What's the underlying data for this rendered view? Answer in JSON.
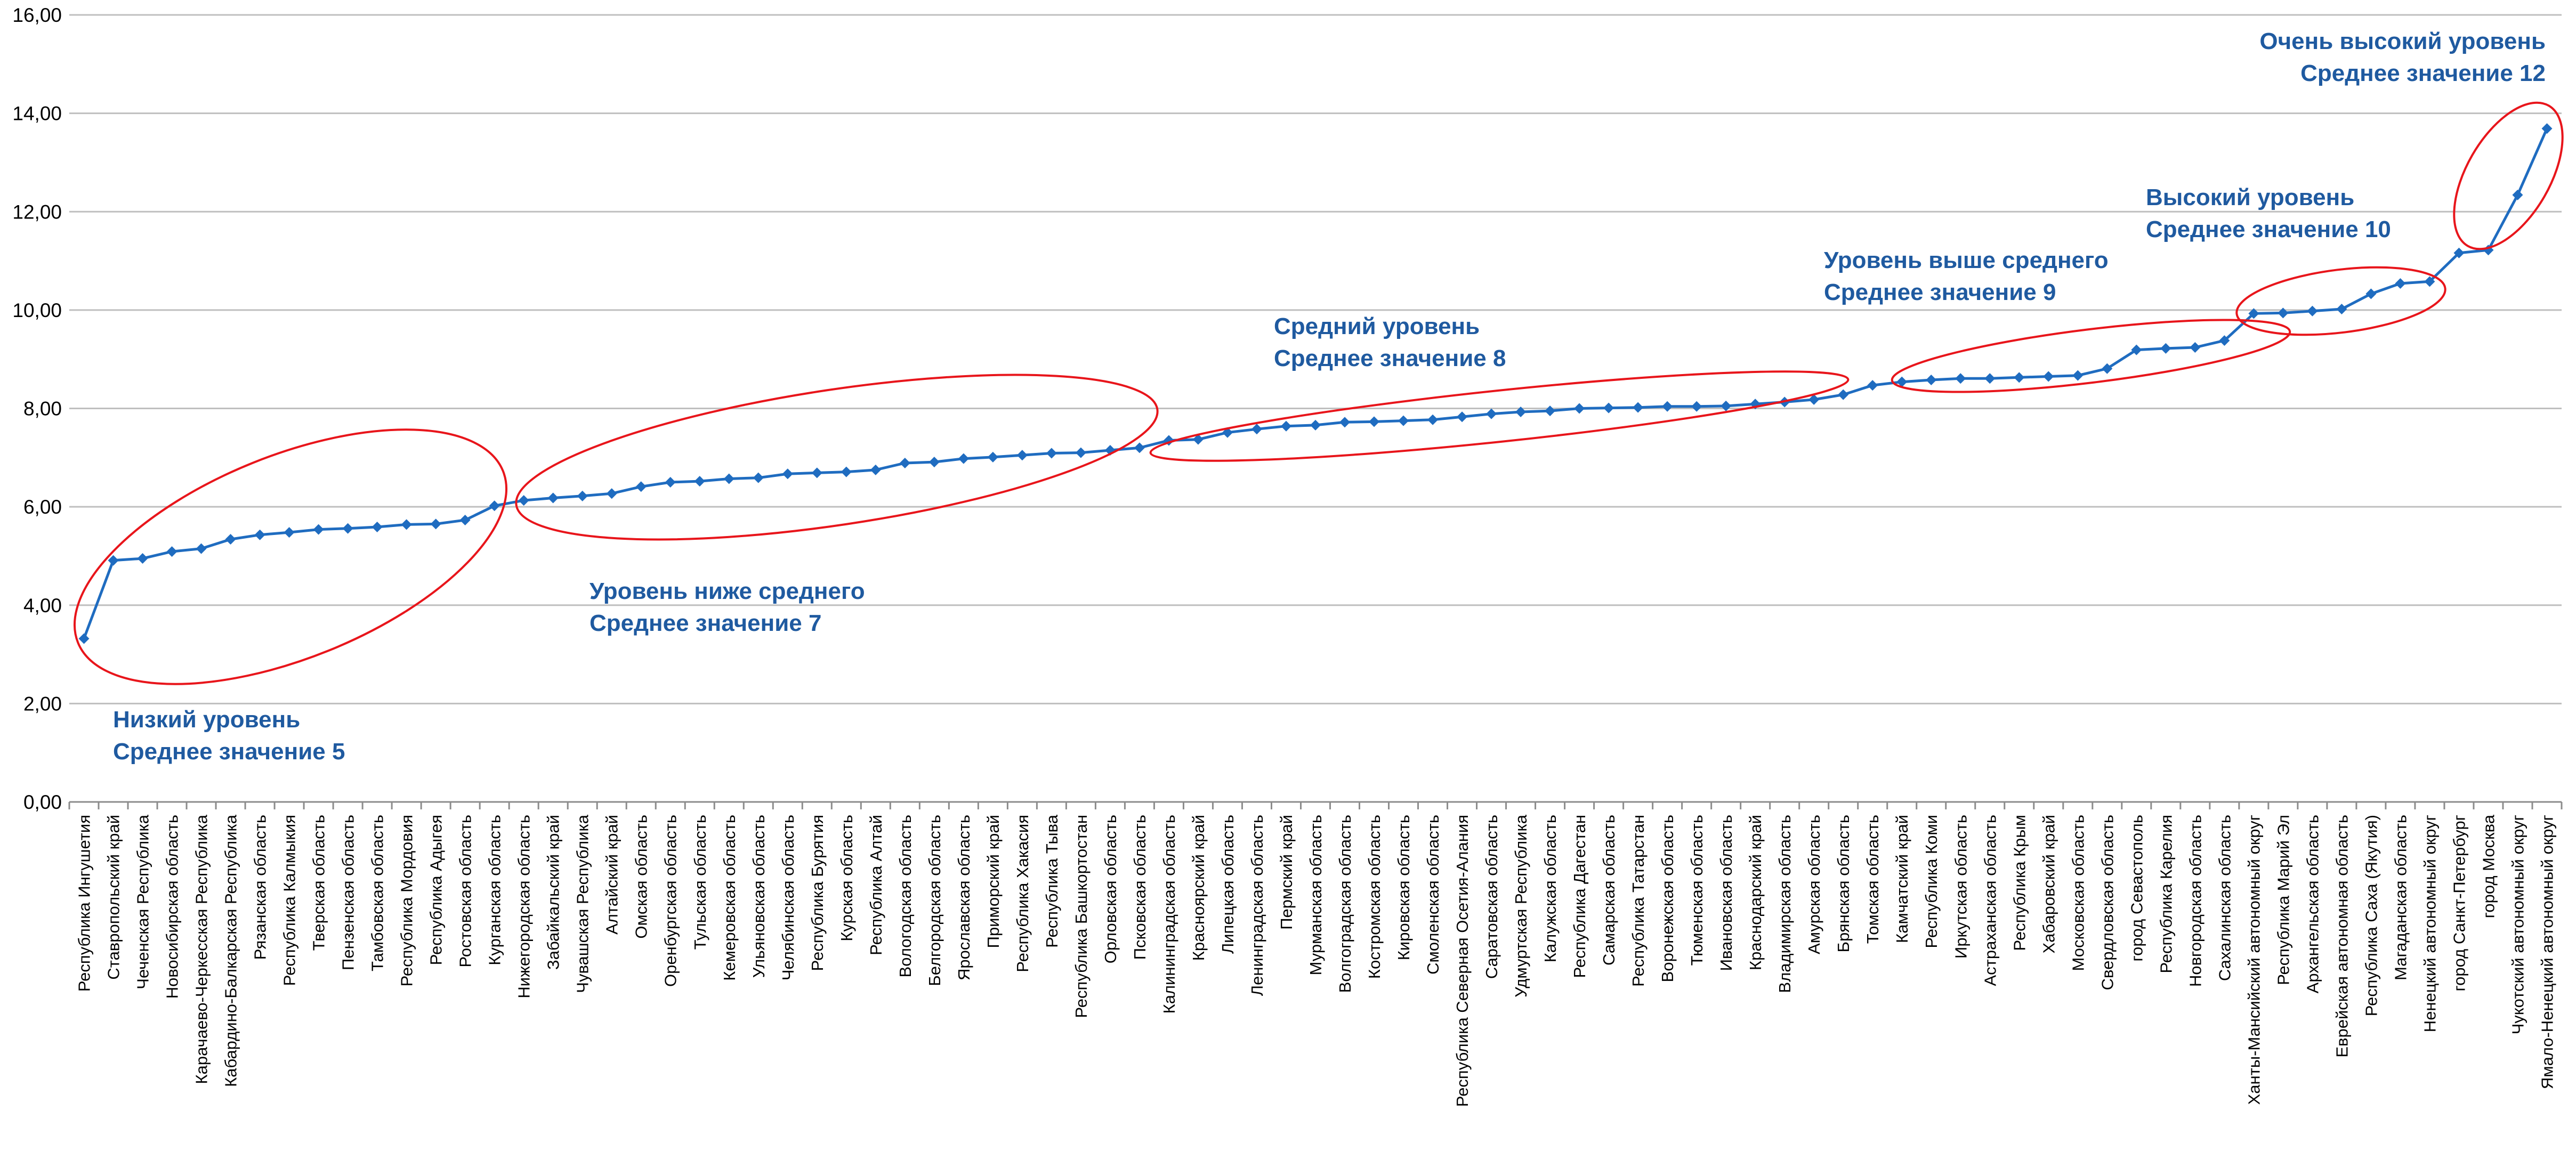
{
  "chart_data": {
    "type": "line",
    "title": "",
    "xlabel": "",
    "ylabel": "",
    "ylim": [
      0,
      16
    ],
    "y_ticks": [
      "0,00",
      "2,00",
      "4,00",
      "6,00",
      "8,00",
      "10,00",
      "12,00",
      "14,00",
      "16,00"
    ],
    "grid": true,
    "legend": "none",
    "colors": {
      "line": "#1f6cc0",
      "marker": "#1f6cc0",
      "ellipse": "#e8151b",
      "annotation": "#1f5aa0",
      "grid": "#bfbfbf"
    },
    "categories": [
      "Республика Ингушетия",
      "Ставропольский край",
      "Чеченская Республика",
      "Новосибирская область",
      "Карачаево-Черкесская Республика",
      "Кабардино-Балкарская Республика",
      "Рязанская область",
      "Республика Калмыкия",
      "Тверская область",
      "Пензенская область",
      "Тамбовская область",
      "Республика Мордовия",
      "Республика Адыгея",
      "Ростовская область",
      "Курганская область",
      "Нижегородская область",
      "Забайкальский край",
      "Чувашская Республика",
      "Алтайский край",
      "Омская область",
      "Оренбургская область",
      "Тульская область",
      "Кемеровская область",
      "Ульяновская область",
      "Челябинская область",
      "Республика Бурятия",
      "Курская область",
      "Республика Алтай",
      "Вологодская область",
      "Белгородская область",
      "Ярославская область",
      "Приморский край",
      "Республика Хакасия",
      "Республика Тыва",
      "Республика Башкортостан",
      "Орловская область",
      "Псковская область",
      "Калининградская область",
      "Красноярский край",
      "Липецкая область",
      "Ленинградская область",
      "Пермский край",
      "Мурманская область",
      "Волгоградская область",
      "Костромская область",
      "Кировская область",
      "Смоленская область",
      "Республика Северная Осетия-Алания",
      "Саратовская область",
      "Удмуртская Республика",
      "Калужская область",
      "Республика Дагестан",
      "Самарская область",
      "Республика Татарстан",
      "Воронежская область",
      "Тюменская область",
      "Ивановская область",
      "Краснодарский край",
      "Владимирская область",
      "Амурская область",
      "Брянская область",
      "Томская область",
      "Камчатский край",
      "Республика Коми",
      "Иркутская область",
      "Астраханская область",
      "Республика Крым",
      "Хабаровский край",
      "Московская область",
      "Свердловская область",
      "город Севастополь",
      "Республика Карелия",
      "Новгородская область",
      "Сахалинская область",
      "Ханты-Мансийский автономный округ",
      "Республика Марий Эл",
      "Архангельская область",
      "Еврейская автономная область",
      "Республика Саха (Якутия)",
      "Магаданская область",
      "Ненецкий автономный округ",
      "город Санкт-Петербург",
      "город Москва",
      "Чукотский автономный округ",
      "Ямало-Ненецкий автономный округ"
    ],
    "series": [
      {
        "values": [
          3.32,
          4.91,
          4.95,
          5.09,
          5.15,
          5.34,
          5.43,
          5.48,
          5.54,
          5.56,
          5.59,
          5.64,
          5.65,
          5.73,
          6.02,
          6.13,
          6.18,
          6.22,
          6.27,
          6.41,
          6.5,
          6.52,
          6.57,
          6.59,
          6.67,
          6.69,
          6.71,
          6.75,
          6.89,
          6.91,
          6.98,
          7.01,
          7.05,
          7.09,
          7.1,
          7.15,
          7.2,
          7.35,
          7.37,
          7.51,
          7.58,
          7.64,
          7.66,
          7.72,
          7.73,
          7.75,
          7.77,
          7.83,
          7.89,
          7.93,
          7.95,
          8.0,
          8.01,
          8.02,
          8.04,
          8.04,
          8.05,
          8.09,
          8.13,
          8.18,
          8.28,
          8.47,
          8.54,
          8.58,
          8.61,
          8.61,
          8.63,
          8.65,
          8.67,
          8.81,
          9.19,
          9.22,
          9.24,
          9.38,
          9.93,
          9.94,
          9.98,
          10.02,
          10.33,
          10.54,
          10.58,
          11.16,
          11.22,
          12.34,
          13.69
        ]
      }
    ],
    "annotations": [
      {
        "line1": "Низкий уровень",
        "line2": "Среднее значение 5",
        "align": "start"
      },
      {
        "line1": "Уровень ниже среднего",
        "line2": "Среднее значение 7",
        "align": "start"
      },
      {
        "line1": "Средний уровень",
        "line2": "Среднее значение 8",
        "align": "start"
      },
      {
        "line1": "Уровень выше среднего",
        "line2": "Среднее значение 9",
        "align": "start"
      },
      {
        "line1": "Высокий уровень",
        "line2": "Среднее значение 10",
        "align": "start"
      },
      {
        "line1": "Очень высокий уровень",
        "line2": "Среднее значение 12",
        "align": "end"
      }
    ]
  }
}
